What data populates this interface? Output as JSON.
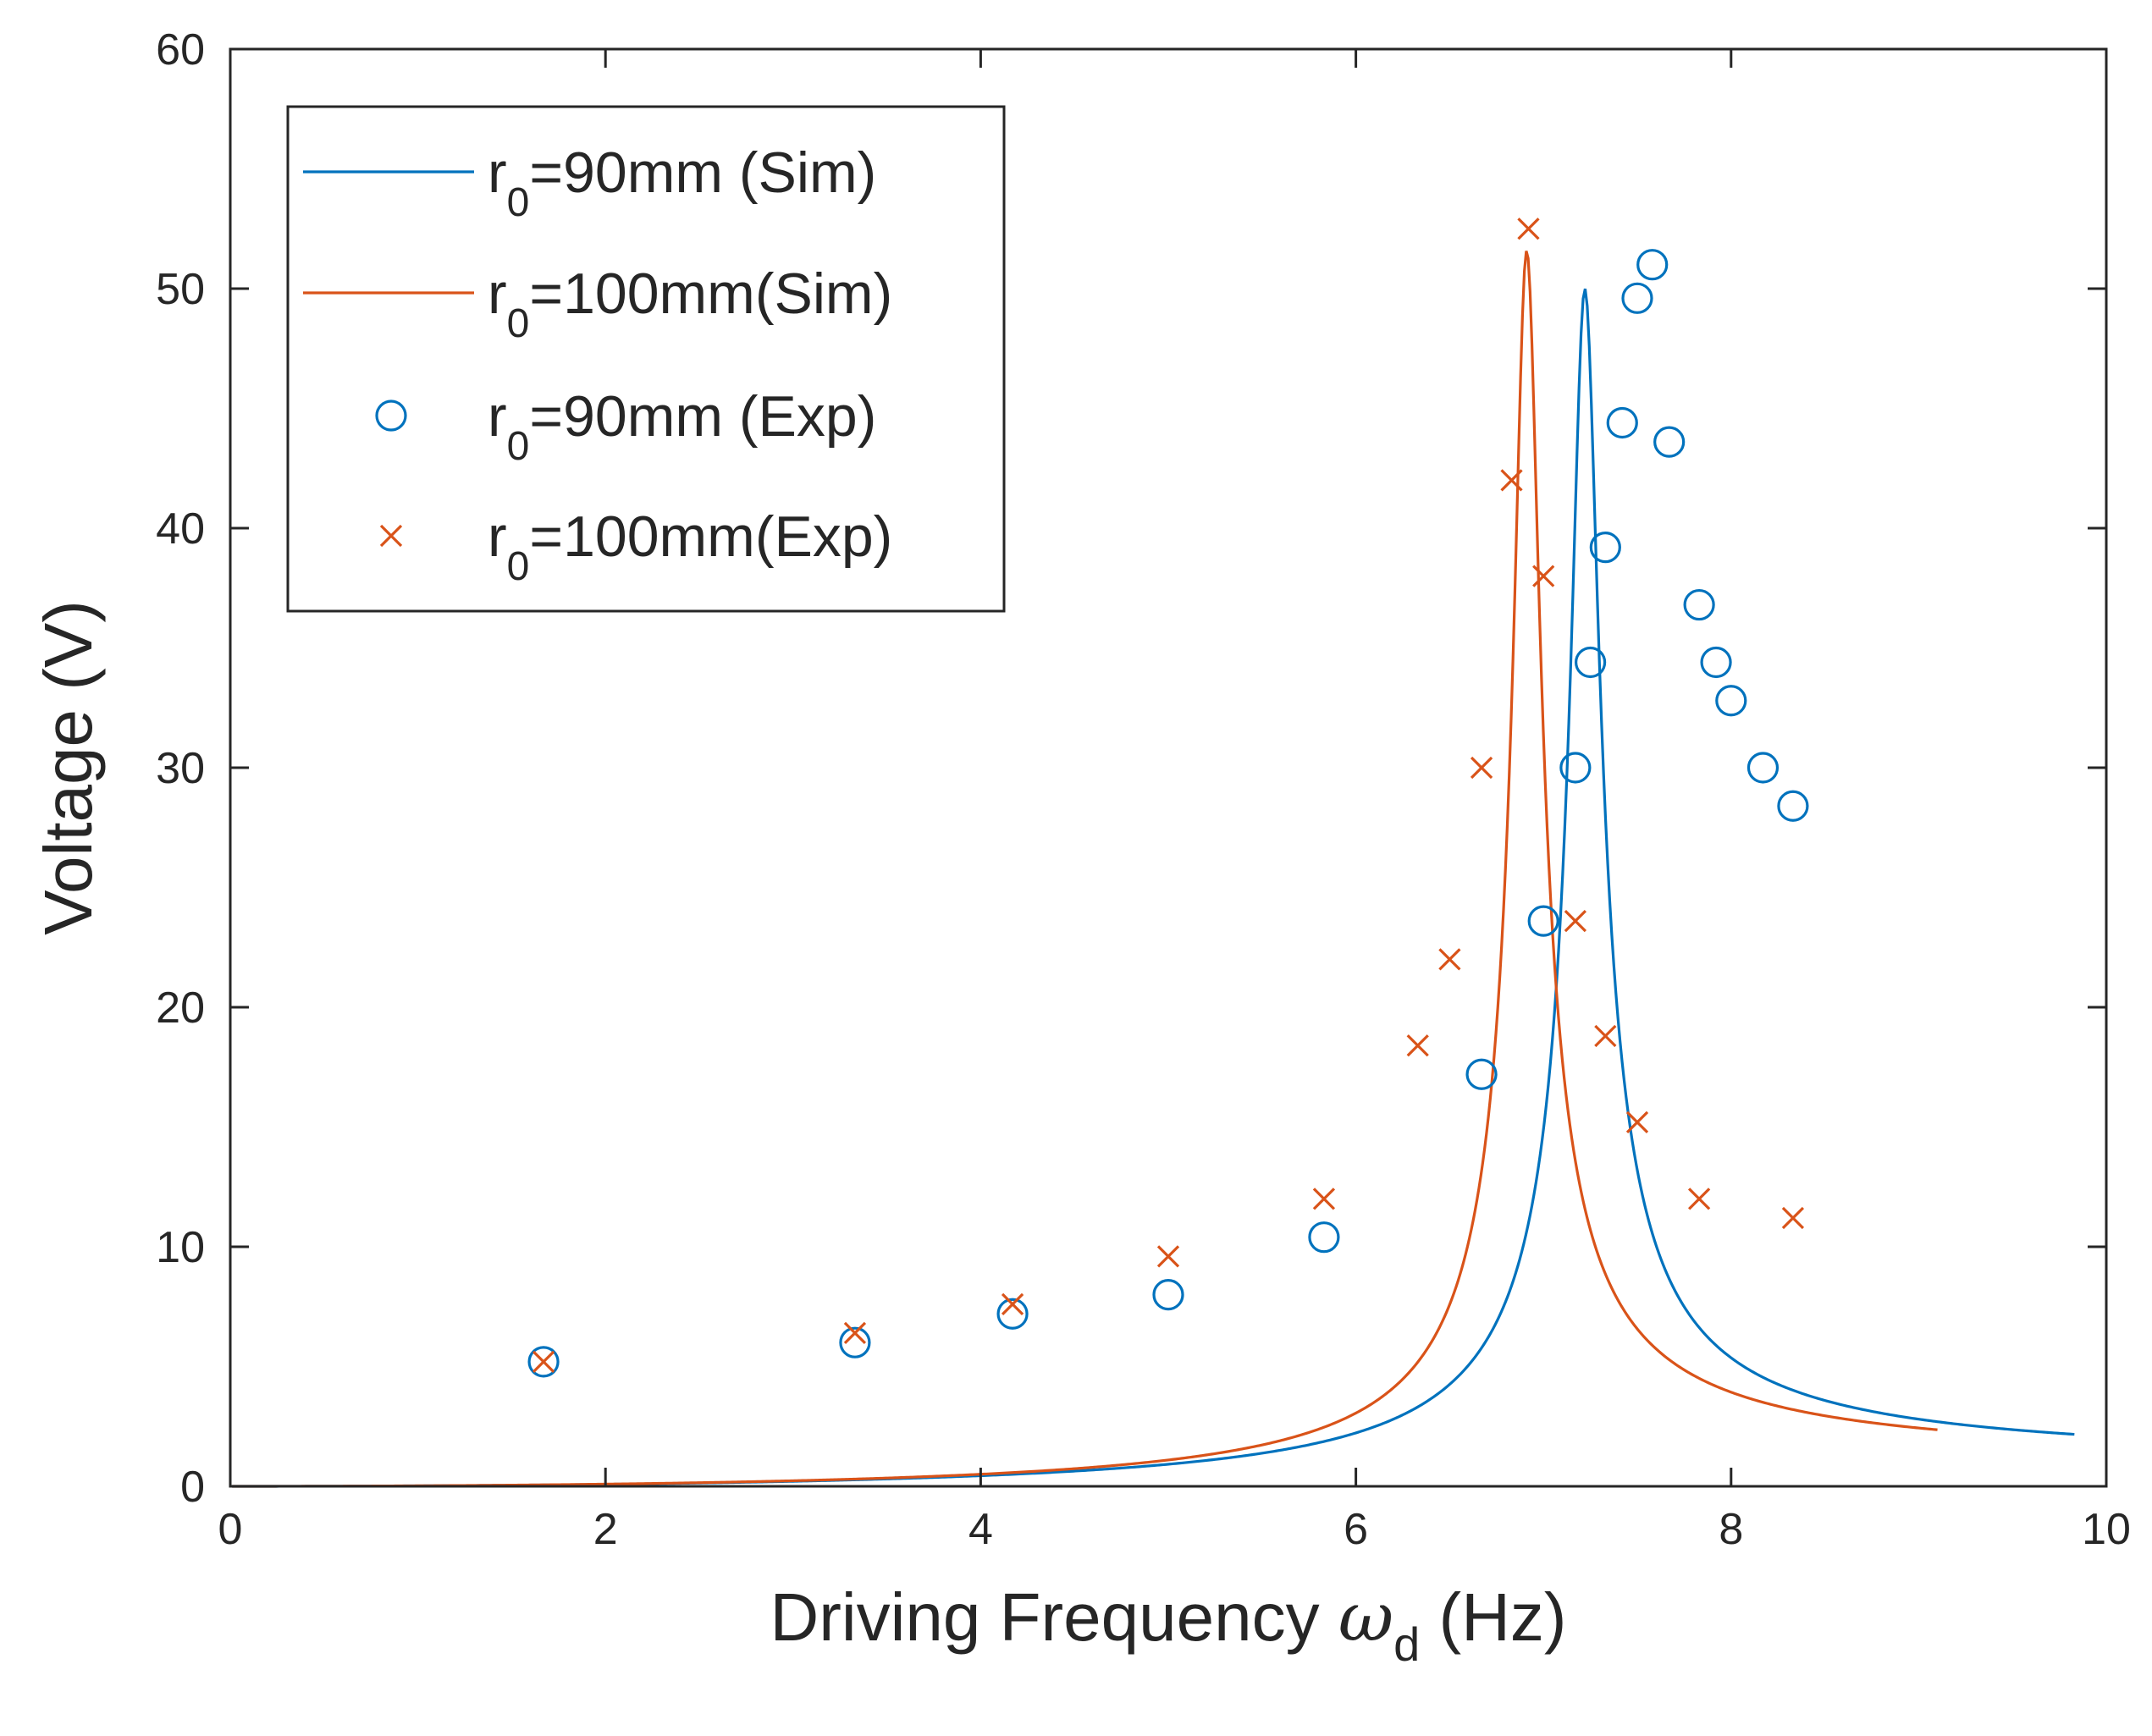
{
  "chart_data": {
    "type": "line",
    "title": "",
    "xlabel": {
      "main": "Driving Frequency ",
      "symbol": "ω",
      "subscript": "d",
      "unit": " (Hz)"
    },
    "ylabel": "Voltage (V)",
    "xlim": [
      0,
      10
    ],
    "ylim": [
      0,
      60
    ],
    "xticks": [
      "0",
      "2",
      "4",
      "6",
      "8",
      "10"
    ],
    "yticks": [
      "0",
      "10",
      "20",
      "30",
      "40",
      "50",
      "60"
    ],
    "grid": false,
    "legend_position": "top-left",
    "colors": {
      "blue": "#0072BD",
      "orange": "#D95319",
      "axis": "#262626"
    },
    "series": [
      {
        "name": "r0=90mm (Sim)",
        "label": {
          "r": "r",
          "sub": "0",
          "rest": "=90mm  (Sim)"
        },
        "kind": "line",
        "color": "#0072BD",
        "f0": 7.22,
        "peak": 50.0,
        "x_end": 9.83
      },
      {
        "name": "r0=100mm(Sim)",
        "label": {
          "r": "r",
          "sub": "0",
          "rest": "=100mm(Sim)"
        },
        "kind": "line",
        "color": "#D95319",
        "f0": 6.91,
        "peak": 51.6,
        "x_end": 9.1
      },
      {
        "name": "r0=90mm (Exp)",
        "label": {
          "r": "r",
          "sub": "0",
          "rest": "=90mm  (Exp)"
        },
        "kind": "circle",
        "color": "#0072BD",
        "points": [
          [
            1.67,
            5.2
          ],
          [
            3.33,
            6.0
          ],
          [
            4.17,
            7.2
          ],
          [
            5.0,
            8.0
          ],
          [
            5.83,
            10.4
          ],
          [
            6.67,
            17.2
          ],
          [
            7.0,
            23.6
          ],
          [
            7.17,
            30.0
          ],
          [
            7.25,
            34.4
          ],
          [
            7.33,
            39.2
          ],
          [
            7.42,
            44.4
          ],
          [
            7.5,
            49.6
          ],
          [
            7.58,
            51.0
          ],
          [
            7.67,
            43.6
          ],
          [
            7.83,
            36.8
          ],
          [
            7.92,
            34.4
          ],
          [
            8.0,
            32.8
          ],
          [
            8.17,
            30.0
          ],
          [
            8.33,
            28.4
          ]
        ]
      },
      {
        "name": "r0=100mm(Exp)",
        "label": {
          "r": "r",
          "sub": "0",
          "rest": "=100mm(Exp)"
        },
        "kind": "cross",
        "color": "#D95319",
        "points": [
          [
            1.67,
            5.2
          ],
          [
            3.33,
            6.4
          ],
          [
            4.17,
            7.6
          ],
          [
            5.0,
            9.6
          ],
          [
            5.83,
            12.0
          ],
          [
            6.33,
            18.4
          ],
          [
            6.5,
            22.0
          ],
          [
            6.67,
            30.0
          ],
          [
            6.83,
            42.0
          ],
          [
            6.92,
            52.5
          ],
          [
            7.0,
            38.0
          ],
          [
            7.17,
            23.6
          ],
          [
            7.33,
            18.8
          ],
          [
            7.5,
            15.2
          ],
          [
            7.83,
            12.0
          ],
          [
            8.33,
            11.2
          ]
        ]
      }
    ]
  }
}
